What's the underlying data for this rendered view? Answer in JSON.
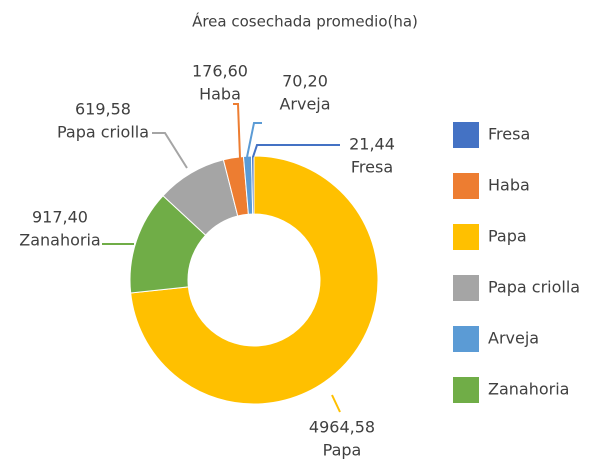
{
  "chart_data": {
    "type": "doughnut",
    "title": "Área cosechada promedio(ha)",
    "categories": [
      "Fresa",
      "Haba",
      "Papa",
      "Papa criolla",
      "Arveja",
      "Zanahoria"
    ],
    "values": [
      21.44,
      176.6,
      4964.58,
      619.58,
      70.2,
      917.4
    ],
    "value_labels": [
      "21,44",
      "176,60",
      "4964,58",
      "619,58",
      "70,20",
      "917,40"
    ],
    "colors": [
      "#4472c4",
      "#ed7d31",
      "#ffc000",
      "#a5a5a5",
      "#5b9bd5",
      "#70ad47"
    ],
    "legend": "right"
  }
}
